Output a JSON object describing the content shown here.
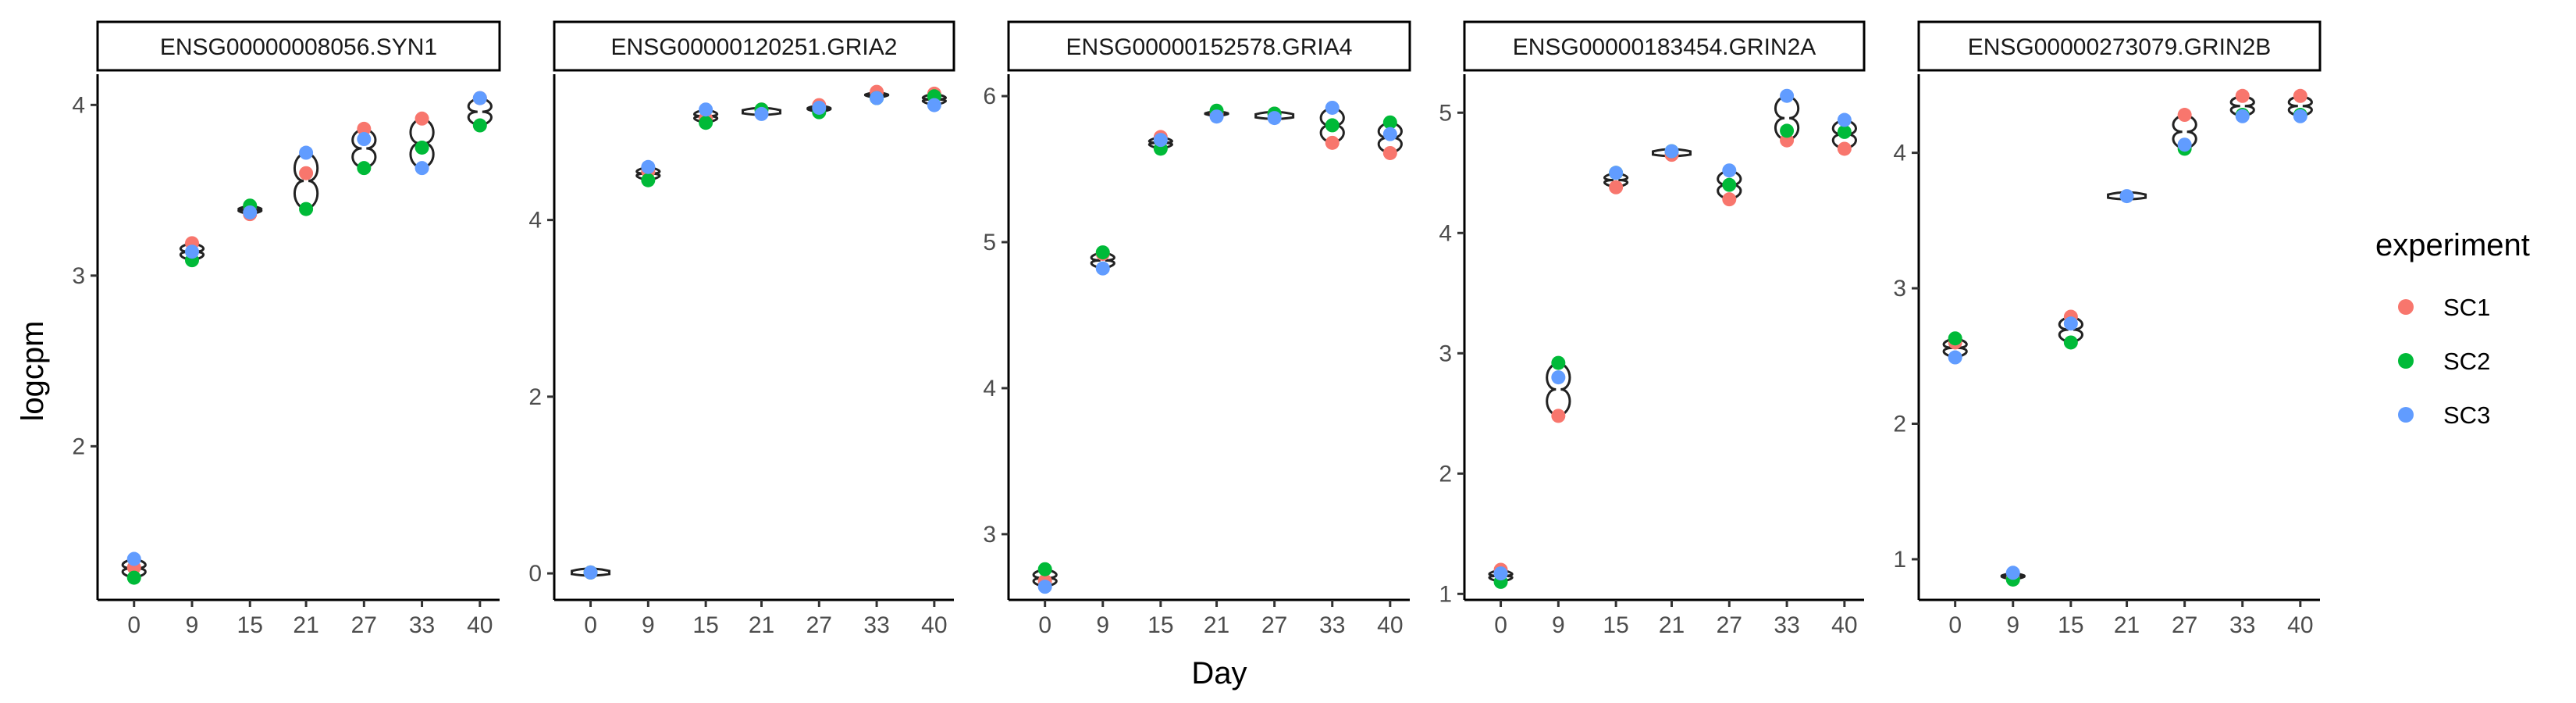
{
  "chart_data": {
    "type": "scatter",
    "xlabel": "Day",
    "ylabel": "logcpm",
    "x_categories": [
      "0",
      "9",
      "15",
      "21",
      "27",
      "33",
      "40"
    ],
    "legend": {
      "title": "experiment",
      "position": "right",
      "entries": [
        {
          "name": "SC1",
          "color": "#F8766D"
        },
        {
          "name": "SC2",
          "color": "#00BA38"
        },
        {
          "name": "SC3",
          "color": "#619CFF"
        }
      ]
    },
    "panels": [
      {
        "title": "ENSG00000008056.SYN1",
        "ylim": [
          1.1,
          4.18
        ],
        "yticks": [
          2,
          3,
          4
        ],
        "series": [
          {
            "name": "SC1",
            "values": [
              1.29,
              3.19,
              3.36,
              3.6,
              3.86,
              3.92,
              4.04
            ]
          },
          {
            "name": "SC2",
            "values": [
              1.23,
              3.09,
              3.41,
              3.39,
              3.63,
              3.75,
              3.88
            ]
          },
          {
            "name": "SC3",
            "values": [
              1.34,
              3.14,
              3.37,
              3.72,
              3.8,
              3.63,
              4.04
            ]
          }
        ]
      },
      {
        "title": "ENSG00000120251.GRIA2",
        "ylim": [
          -0.3,
          5.65
        ],
        "yticks": [
          0,
          2,
          4
        ],
        "series": [
          {
            "name": "SC1",
            "values": [
              0.01,
              4.55,
              5.15,
              5.25,
              5.3,
              5.45,
              5.43
            ]
          },
          {
            "name": "SC2",
            "values": [
              0.01,
              4.45,
              5.1,
              5.25,
              5.22,
              5.38,
              5.4
            ]
          },
          {
            "name": "SC3",
            "values": [
              0.01,
              4.6,
              5.25,
              5.2,
              5.27,
              5.38,
              5.3
            ]
          }
        ]
      },
      {
        "title": "ENSG00000152578.GRIA4",
        "ylim": [
          2.55,
          6.15
        ],
        "yticks": [
          3,
          4,
          5,
          6
        ],
        "series": [
          {
            "name": "SC1",
            "values": [
              2.68,
              4.92,
              5.72,
              5.88,
              5.88,
              5.68,
              5.61
            ]
          },
          {
            "name": "SC2",
            "values": [
              2.76,
              4.93,
              5.64,
              5.9,
              5.88,
              5.8,
              5.82
            ]
          },
          {
            "name": "SC3",
            "values": [
              2.64,
              4.82,
              5.7,
              5.86,
              5.85,
              5.92,
              5.74
            ]
          }
        ]
      },
      {
        "title": "ENSG00000183454.GRIN2A",
        "ylim": [
          0.95,
          5.32
        ],
        "yticks": [
          1,
          2,
          3,
          4,
          5
        ],
        "series": [
          {
            "name": "SC1",
            "values": [
              1.2,
              2.48,
              4.38,
              4.65,
              4.28,
              4.77,
              4.7
            ]
          },
          {
            "name": "SC2",
            "values": [
              1.1,
              2.92,
              4.5,
              4.68,
              4.4,
              4.85,
              4.84
            ]
          },
          {
            "name": "SC3",
            "values": [
              1.17,
              2.8,
              4.5,
              4.68,
              4.52,
              5.14,
              4.94
            ]
          }
        ]
      },
      {
        "title": "ENSG00000273079.GRIN2B",
        "ylim": [
          0.7,
          4.58
        ],
        "yticks": [
          1,
          2,
          3,
          4
        ],
        "series": [
          {
            "name": "SC1",
            "values": [
              2.6,
              0.86,
              2.79,
              4.28,
              4.42,
              4.42
            ]
          },
          {
            "name": "SC2",
            "values": [
              2.63,
              0.85,
              2.6,
              4.03,
              4.28,
              4.28
            ]
          },
          {
            "name": "SC3",
            "values": [
              2.49,
              0.9,
              2.74,
              4.06,
              4.27,
              4.27
            ]
          }
        ],
        "x_override": [
          "0",
          "9",
          "15",
          "27",
          "33",
          "40"
        ],
        "single_point_day": "21",
        "single_point_value": 3.68
      }
    ]
  }
}
